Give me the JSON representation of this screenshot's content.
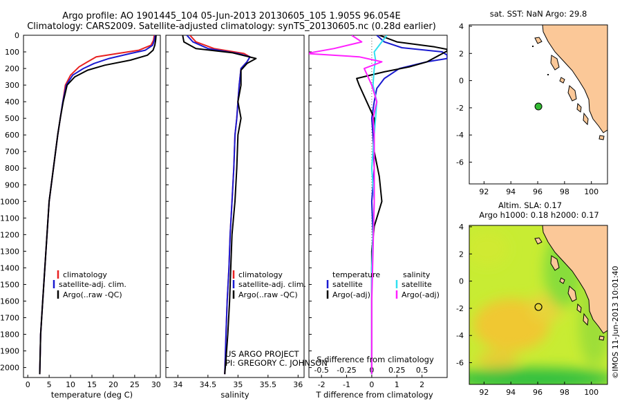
{
  "header": {
    "line1": "Argo profile: AO 1901445_104 05-Jun-2013 20130605_105 1.905S 96.054E",
    "line2": "Climatology: CARS2009. Satellite-adjusted climatology: synTS_20130605.nc (0.28d earlier)"
  },
  "colors": {
    "climatology": "#e82020",
    "satellite": "#1a1ad0",
    "argo": "#000000",
    "salinity_satellite": "#30e0f0",
    "salinity_argo": "#ff20ff",
    "land": "#fbc898",
    "argo_marker": "#33bb33"
  },
  "chart_data": [
    {
      "type": "line",
      "panel": "temperature",
      "xlabel": "temperature (deg C)",
      "xlim": [
        -1,
        31
      ],
      "xticks": [
        0,
        5,
        10,
        15,
        20,
        25,
        30
      ],
      "ylim": [
        2060,
        0
      ],
      "yticks": [
        0,
        100,
        200,
        300,
        400,
        500,
        600,
        700,
        800,
        900,
        1000,
        1100,
        1200,
        1300,
        1400,
        1500,
        1600,
        1700,
        1800,
        1900,
        2000
      ],
      "legend": [
        "climatology",
        "satellite-adj. clim.",
        "Argo(..raw -QC)"
      ],
      "series": [
        {
          "name": "climatology",
          "color_key": "climatology",
          "x": [
            29.6,
            29.4,
            28.8,
            26,
            21,
            16,
            14,
            12,
            10,
            8.8,
            8.2,
            7.6,
            7,
            6.5,
            6,
            5.5,
            5,
            4.5,
            4,
            3.5,
            3,
            2.8
          ],
          "y": [
            0,
            30,
            60,
            90,
            110,
            130,
            160,
            190,
            240,
            300,
            400,
            500,
            600,
            700,
            800,
            900,
            1000,
            1200,
            1400,
            1600,
            1800,
            2040
          ]
        },
        {
          "name": "satellite-adj. clim.",
          "color_key": "satellite",
          "x": [
            29.8,
            29.6,
            29.2,
            27.5,
            24,
            19,
            15.5,
            13,
            10.5,
            9,
            8.2,
            7.6,
            7,
            6.5,
            6,
            5.5,
            5,
            4.5,
            4,
            3.5,
            3,
            2.8
          ],
          "y": [
            0,
            30,
            60,
            90,
            110,
            140,
            170,
            200,
            240,
            300,
            400,
            500,
            600,
            700,
            800,
            900,
            1000,
            1200,
            1400,
            1600,
            1800,
            2040
          ]
        },
        {
          "name": "Argo(..raw -QC)",
          "color_key": "argo",
          "x": [
            30,
            29.9,
            29.7,
            29.3,
            28,
            24,
            18,
            14,
            11,
            9.2,
            8.3,
            7.6,
            7,
            6.5,
            6,
            5.5,
            5,
            4.5,
            4,
            3.5,
            3,
            2.8
          ],
          "y": [
            0,
            30,
            60,
            90,
            120,
            150,
            180,
            210,
            250,
            300,
            400,
            500,
            600,
            700,
            800,
            900,
            1000,
            1200,
            1400,
            1600,
            1800,
            2040
          ]
        }
      ]
    },
    {
      "type": "line",
      "panel": "salinity",
      "xlabel": "salinity",
      "xlim": [
        33.8,
        36.1
      ],
      "xticks": [
        34,
        34.5,
        35,
        35.5,
        36
      ],
      "ylim": [
        2060,
        0
      ],
      "legend": [
        "climatology",
        "satellite-adj. clim.",
        "Argo(..raw -QC)"
      ],
      "series": [
        {
          "name": "climatology",
          "color_key": "climatology",
          "x": [
            34.2,
            34.3,
            34.6,
            35.1,
            35.2,
            35.15,
            35.05,
            35.02,
            35,
            34.98,
            34.95,
            34.93,
            34.9,
            34.87,
            34.85,
            34.82,
            34.8,
            34.78
          ],
          "y": [
            0,
            40,
            80,
            110,
            130,
            160,
            200,
            300,
            400,
            500,
            600,
            800,
            1000,
            1200,
            1400,
            1600,
            1800,
            2040
          ]
        },
        {
          "name": "satellite-adj. clim.",
          "color_key": "satellite",
          "x": [
            34.15,
            34.25,
            34.5,
            35,
            35.2,
            35.15,
            35.05,
            35.02,
            35,
            34.98,
            34.95,
            34.93,
            34.9,
            34.87,
            34.85,
            34.82,
            34.8,
            34.78
          ],
          "y": [
            0,
            40,
            80,
            110,
            130,
            160,
            200,
            300,
            400,
            500,
            600,
            800,
            1000,
            1200,
            1400,
            1600,
            1800,
            2040
          ]
        },
        {
          "name": "Argo(..raw -QC)",
          "color_key": "argo",
          "x": [
            34.08,
            34.1,
            34.3,
            34.9,
            35.3,
            35.15,
            35.05,
            35.05,
            35,
            35.05,
            35,
            34.98,
            34.95,
            34.9,
            34.88,
            34.86,
            34.83,
            34.8,
            34.78
          ],
          "y": [
            0,
            40,
            80,
            105,
            140,
            170,
            210,
            300,
            400,
            500,
            600,
            800,
            1000,
            1200,
            1400,
            1600,
            1800,
            1950,
            2040
          ]
        }
      ]
    },
    {
      "type": "line",
      "panel": "difference",
      "xlabel": "T difference from climatology",
      "xlabel_top": "S difference from climatology",
      "xlim_T": [
        -2.5,
        3
      ],
      "xticks_T": [
        -2,
        -1,
        0,
        1,
        2
      ],
      "xticks_S": [
        -0.5,
        -0.25,
        0,
        0.25,
        0.5
      ],
      "ylim": [
        2060,
        0
      ],
      "legend_titles": [
        "temperature",
        "salinity"
      ],
      "legend": [
        "satellite",
        "Argo(-adj)",
        "satellite",
        "Argo(-adj)"
      ],
      "series": [
        {
          "name": "satellite",
          "color_key": "satellite",
          "x": [
            0.2,
            0.5,
            1.2,
            2.8,
            3,
            3,
            2.2,
            1.1,
            0.5,
            0.2,
            0.1,
            0,
            0.05,
            0.1,
            0,
            0.05,
            0,
            0,
            0
          ],
          "y": [
            0,
            40,
            75,
            100,
            120,
            140,
            160,
            200,
            260,
            320,
            400,
            500,
            600,
            800,
            1000,
            1200,
            1400,
            1700,
            2040
          ]
        },
        {
          "name": "Argo(-adj)",
          "color_key": "argo",
          "x": [
            0.3,
            1,
            2.5,
            3,
            3,
            2.2,
            1.5,
            0.5,
            -0.6,
            -0.5,
            -0.2,
            0.1,
            0.1,
            0.3,
            0.4,
            0.1,
            0,
            0,
            0,
            0
          ],
          "y": [
            0,
            40,
            70,
            85,
            95,
            160,
            190,
            220,
            260,
            300,
            400,
            500,
            700,
            850,
            1000,
            1150,
            1300,
            1500,
            1700,
            2040
          ]
        },
        {
          "name": "satellite",
          "color_key": "salinity_satellite",
          "x": [
            0.6,
            0.3,
            0.1,
            0.15,
            0.1,
            0.05,
            0.2,
            0.15,
            0.1,
            0.05,
            0,
            0.1,
            0.05,
            0,
            0,
            0
          ],
          "y": [
            0,
            60,
            100,
            150,
            200,
            300,
            400,
            500,
            600,
            700,
            800,
            1000,
            1200,
            1400,
            1700,
            2040
          ]
        },
        {
          "name": "Argo(-adj)",
          "color_key": "salinity_argo",
          "x": [
            -0.8,
            -0.4,
            -1.5,
            -2.6,
            -0.5,
            0.4,
            -0.3,
            0,
            0.2,
            0.05,
            0.1,
            0.1,
            0.1,
            0.05,
            0,
            0
          ],
          "y": [
            0,
            40,
            80,
            110,
            130,
            160,
            200,
            300,
            400,
            500,
            600,
            800,
            1000,
            1300,
            1600,
            2040
          ]
        }
      ]
    }
  ],
  "maps": {
    "top": {
      "title": "sat. SST: NaN Argo: 29.8",
      "lon_ticks": [
        92,
        94,
        96,
        98,
        100
      ],
      "lat_ticks": [
        4,
        2,
        0,
        -2,
        -4,
        -6
      ],
      "marker": {
        "lon": 96.054,
        "lat": -1.905
      }
    },
    "bottom": {
      "title1": "Altim. SLA: 0.17",
      "title2": "Argo h1000: 0.18 h2000: 0.17",
      "lon_ticks": [
        92,
        94,
        96,
        98,
        100
      ],
      "lat_ticks": [
        4,
        2,
        0,
        -2,
        -4,
        -6
      ],
      "marker": {
        "lon": 96.054,
        "lat": -1.905
      }
    }
  },
  "annotations": {
    "project_line1": "US ARGO PROJECT",
    "project_line2": "PI: GREGORY C. JOHNSON",
    "watermark": "©IMOS 11-Jun-2013 10:01:40"
  }
}
